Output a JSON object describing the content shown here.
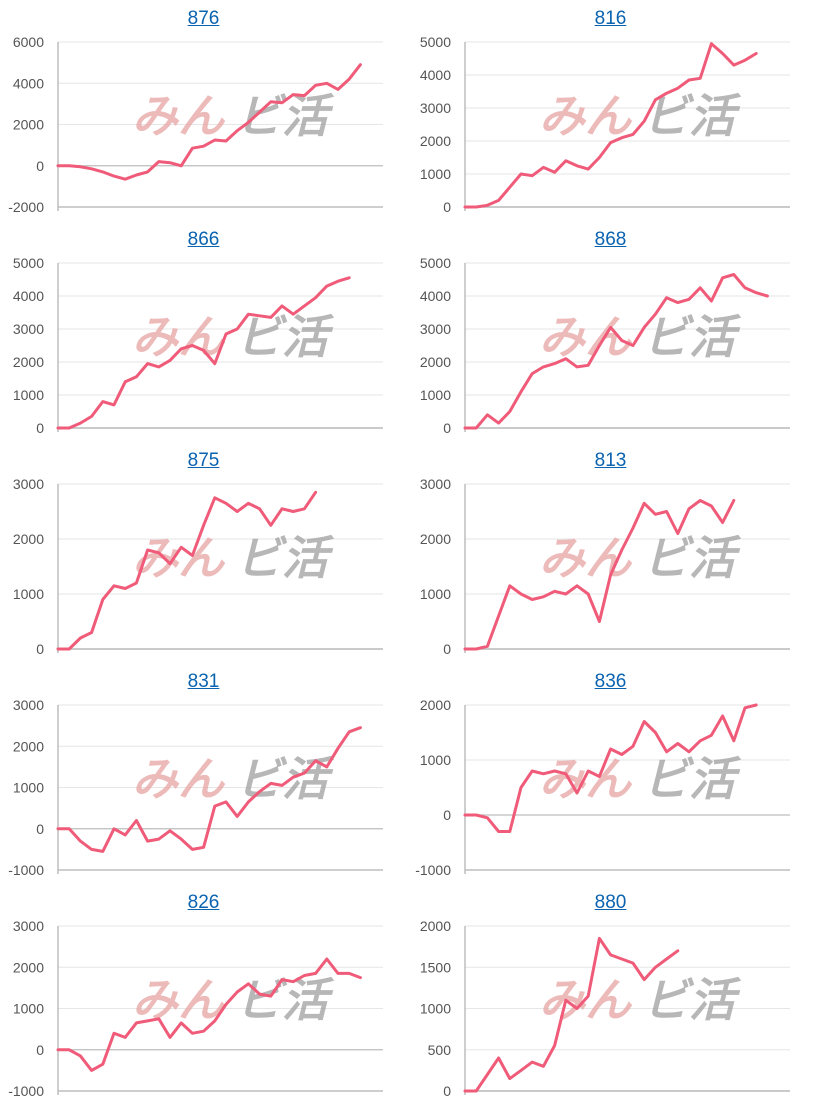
{
  "watermark": {
    "part1": "みん",
    "part2": "ビ活"
  },
  "colors": {
    "line": "#ef5b78",
    "title": "#0b63b0"
  },
  "chart_data": [
    {
      "type": "line",
      "title": "876",
      "ylim": [
        -2000,
        6000
      ],
      "yticks": [
        6000,
        4000,
        2000,
        0,
        -2000
      ],
      "series": [
        {
          "values": [
            0,
            0,
            -50,
            -150,
            -300,
            -500,
            -650,
            -450,
            -300,
            200,
            150,
            0,
            850,
            950,
            1250,
            1200,
            1700,
            2100,
            2600,
            3100,
            3050,
            3450,
            3400,
            3900,
            4000,
            3700,
            4200,
            4900
          ]
        }
      ]
    },
    {
      "type": "line",
      "title": "816",
      "ylim": [
        0,
        5000
      ],
      "yticks": [
        5000,
        4000,
        3000,
        2000,
        1000,
        0
      ],
      "series": [
        {
          "values": [
            0,
            0,
            50,
            200,
            600,
            1000,
            950,
            1200,
            1050,
            1400,
            1250,
            1150,
            1500,
            1950,
            2100,
            2200,
            2600,
            3250,
            3450,
            3600,
            3850,
            3900,
            4950,
            4650,
            4300,
            4450,
            4650
          ]
        }
      ]
    },
    {
      "type": "line",
      "title": "866",
      "ylim": [
        0,
        5000
      ],
      "yticks": [
        5000,
        4000,
        3000,
        2000,
        1000,
        0
      ],
      "series": [
        {
          "values": [
            0,
            0,
            150,
            350,
            800,
            700,
            1400,
            1550,
            1950,
            1850,
            2050,
            2400,
            2500,
            2350,
            1950,
            2850,
            3000,
            3450,
            3400,
            3350,
            3700,
            3450,
            3700,
            3950,
            4300,
            4450,
            4550
          ]
        }
      ]
    },
    {
      "type": "line",
      "title": "868",
      "ylim": [
        0,
        5000
      ],
      "yticks": [
        5000,
        4000,
        3000,
        2000,
        1000,
        0
      ],
      "series": [
        {
          "values": [
            0,
            0,
            400,
            150,
            500,
            1100,
            1650,
            1850,
            1950,
            2100,
            1850,
            1900,
            2500,
            3050,
            2650,
            2500,
            3050,
            3450,
            3950,
            3800,
            3900,
            4250,
            3850,
            4550,
            4650,
            4250,
            4100,
            4000
          ]
        }
      ]
    },
    {
      "type": "line",
      "title": "875",
      "ylim": [
        0,
        3000
      ],
      "yticks": [
        3000,
        2000,
        1000,
        0
      ],
      "series": [
        {
          "values": [
            0,
            0,
            200,
            300,
            900,
            1150,
            1100,
            1200,
            1800,
            1750,
            1550,
            1850,
            1700,
            2250,
            2750,
            2650,
            2500,
            2650,
            2550,
            2250,
            2550,
            2500,
            2550,
            2850
          ]
        }
      ]
    },
    {
      "type": "line",
      "title": "813",
      "ylim": [
        0,
        3000
      ],
      "yticks": [
        3000,
        2000,
        1000,
        0
      ],
      "series": [
        {
          "values": [
            0,
            0,
            50,
            600,
            1150,
            1000,
            900,
            950,
            1050,
            1000,
            1150,
            1000,
            500,
            1350,
            1800,
            2200,
            2650,
            2450,
            2500,
            2100,
            2550,
            2700,
            2600,
            2300,
            2700
          ]
        }
      ]
    },
    {
      "type": "line",
      "title": "831",
      "ylim": [
        -1000,
        3000
      ],
      "yticks": [
        3000,
        2000,
        1000,
        0,
        -1000
      ],
      "series": [
        {
          "values": [
            0,
            0,
            -300,
            -500,
            -550,
            0,
            -150,
            200,
            -300,
            -250,
            -50,
            -250,
            -500,
            -450,
            550,
            650,
            300,
            650,
            900,
            1100,
            1050,
            1250,
            1350,
            1650,
            1500,
            1950,
            2350,
            2450
          ]
        }
      ]
    },
    {
      "type": "line",
      "title": "836",
      "ylim": [
        -1000,
        2000
      ],
      "yticks": [
        2000,
        1000,
        0,
        -1000
      ],
      "series": [
        {
          "values": [
            0,
            0,
            -50,
            -300,
            -300,
            500,
            800,
            750,
            800,
            750,
            400,
            800,
            700,
            1200,
            1100,
            1250,
            1700,
            1500,
            1150,
            1300,
            1150,
            1350,
            1450,
            1800,
            1350,
            1950,
            2000
          ]
        }
      ]
    },
    {
      "type": "line",
      "title": "826",
      "ylim": [
        -1000,
        3000
      ],
      "yticks": [
        3000,
        2000,
        1000,
        0,
        -1000
      ],
      "series": [
        {
          "values": [
            0,
            0,
            -150,
            -500,
            -350,
            400,
            300,
            650,
            700,
            750,
            300,
            650,
            400,
            450,
            700,
            1100,
            1400,
            1600,
            1350,
            1300,
            1700,
            1650,
            1800,
            1850,
            2200,
            1850,
            1850,
            1750
          ]
        }
      ]
    },
    {
      "type": "line",
      "title": "880",
      "ylim": [
        0,
        2000
      ],
      "yticks": [
        2000,
        1500,
        1000,
        500,
        0
      ],
      "series": [
        {
          "values": [
            0,
            0,
            200,
            400,
            150,
            250,
            350,
            300,
            550,
            1100,
            1000,
            1150,
            1850,
            1650,
            1600,
            1550,
            1350,
            1500,
            1600,
            1700
          ]
        }
      ]
    }
  ]
}
